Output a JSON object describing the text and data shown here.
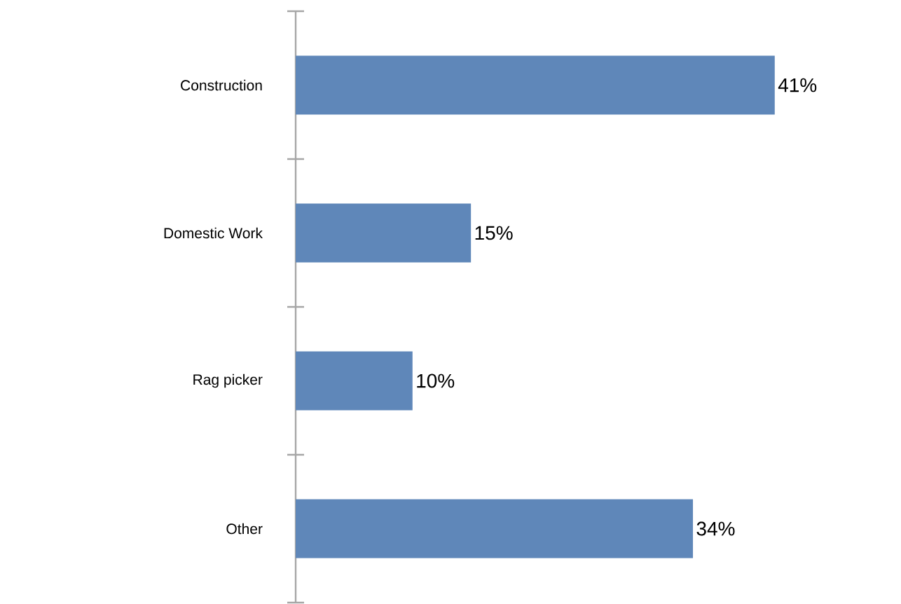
{
  "chart_data": {
    "type": "bar",
    "orientation": "horizontal",
    "categories": [
      "Construction",
      "Domestic Work",
      "Rag picker",
      "Other"
    ],
    "values": [
      41,
      15,
      10,
      34
    ],
    "value_labels": [
      "41%",
      "15%",
      "10%",
      "34%"
    ],
    "color": "#5f87b9"
  }
}
